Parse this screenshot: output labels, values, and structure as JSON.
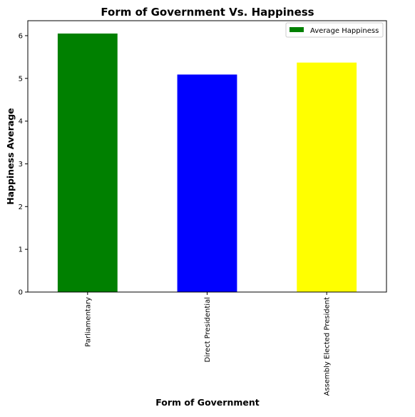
{
  "chart_data": {
    "type": "bar",
    "title": "Form of Government Vs. Happiness",
    "xlabel": "Form of Government",
    "ylabel": "Happiness Average",
    "categories": [
      "Parliamentary",
      "Direct Presidential",
      "Assembly Elected President"
    ],
    "series": [
      {
        "name": "Average Happiness",
        "values": [
          6.05,
          5.09,
          5.37
        ]
      }
    ],
    "bar_colors": [
      "#008000",
      "#0000ff",
      "#ffff00"
    ],
    "yticks": [
      0,
      1,
      2,
      3,
      4,
      5,
      6
    ],
    "ylim": [
      0,
      6.35
    ],
    "grid": false,
    "legend_position": "top-right"
  }
}
